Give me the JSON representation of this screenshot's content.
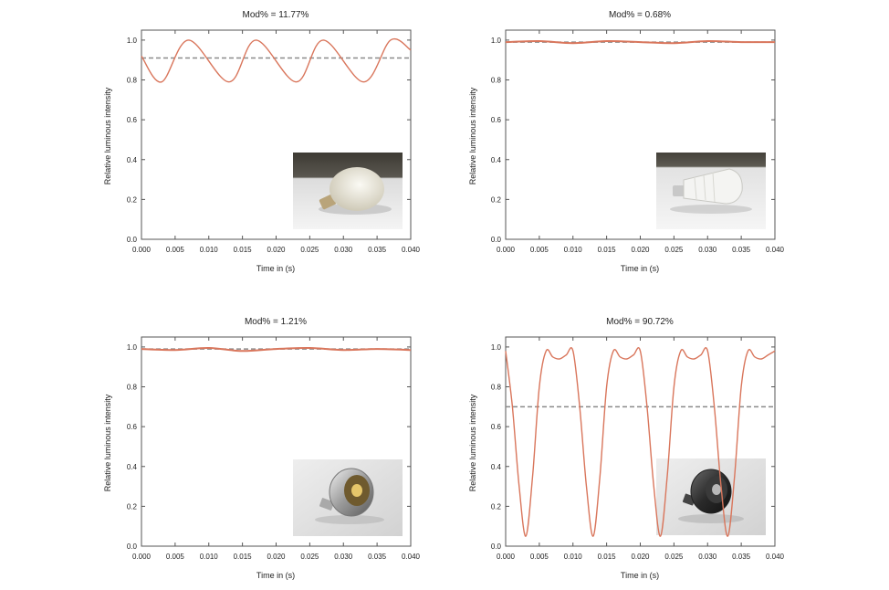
{
  "colors": {
    "curve": "#d9765c",
    "mean_line": "#8a8a8a",
    "axis": "#555555",
    "text": "#222222"
  },
  "chart_data": [
    {
      "type": "line",
      "title": "Mod% = 11.77%",
      "xlabel": "Time in (s)",
      "ylabel": "Relative luminous intensity",
      "xlim": [
        0,
        0.04
      ],
      "ylim": [
        0,
        1.05
      ],
      "x_ticks": [
        "0.000",
        "0.005",
        "0.010",
        "0.015",
        "0.020",
        "0.025",
        "0.030",
        "0.035",
        "0.040"
      ],
      "y_ticks": [
        "0.0",
        "0.2",
        "0.4",
        "0.6",
        "0.8",
        "1.0"
      ],
      "mean_level": 0.91,
      "series": [
        {
          "name": "luminous intensity",
          "x": [
            0.0,
            0.003,
            0.007,
            0.013,
            0.017,
            0.023,
            0.027,
            0.033,
            0.037,
            0.04
          ],
          "values": [
            0.92,
            0.79,
            1.0,
            0.79,
            1.0,
            0.79,
            1.0,
            0.79,
            1.0,
            0.95
          ]
        }
      ],
      "inset_image": "frosted LED bulb photo"
    },
    {
      "type": "line",
      "title": "Mod% = 0.68%",
      "xlabel": "Time in (s)",
      "ylabel": "Relative luminous intensity",
      "xlim": [
        0,
        0.04
      ],
      "ylim": [
        0,
        1.05
      ],
      "x_ticks": [
        "0.000",
        "0.005",
        "0.010",
        "0.015",
        "0.020",
        "0.025",
        "0.030",
        "0.035",
        "0.040"
      ],
      "y_ticks": [
        "0.0",
        "0.2",
        "0.4",
        "0.6",
        "0.8",
        "1.0"
      ],
      "mean_level": 0.99,
      "series": [
        {
          "name": "luminous intensity",
          "x": [
            0.0,
            0.005,
            0.01,
            0.015,
            0.02,
            0.025,
            0.03,
            0.035,
            0.04
          ],
          "values": [
            0.99,
            0.995,
            0.985,
            0.995,
            0.99,
            0.985,
            0.995,
            0.99,
            0.99
          ]
        }
      ],
      "inset_image": "white finned LED bulb photo"
    },
    {
      "type": "line",
      "title": "Mod% = 1.21%",
      "xlabel": "Time in (s)",
      "ylabel": "Relative luminous intensity",
      "xlim": [
        0,
        0.04
      ],
      "ylim": [
        0,
        1.05
      ],
      "x_ticks": [
        "0.000",
        "0.005",
        "0.010",
        "0.015",
        "0.020",
        "0.025",
        "0.030",
        "0.035",
        "0.040"
      ],
      "y_ticks": [
        "0.0",
        "0.2",
        "0.4",
        "0.6",
        "0.8",
        "1.0"
      ],
      "mean_level": 0.99,
      "series": [
        {
          "name": "luminous intensity",
          "x": [
            0.0,
            0.005,
            0.01,
            0.015,
            0.02,
            0.025,
            0.03,
            0.035,
            0.04
          ],
          "values": [
            0.99,
            0.985,
            0.995,
            0.98,
            0.99,
            0.995,
            0.985,
            0.99,
            0.985
          ]
        }
      ],
      "inset_image": "silver MR16 LED spot lamp photo"
    },
    {
      "type": "line",
      "title": "Mod% = 90.72%",
      "xlabel": "Time in (s)",
      "ylabel": "Relative luminous intensity",
      "xlim": [
        0,
        0.04
      ],
      "ylim": [
        0,
        1.05
      ],
      "x_ticks": [
        "0.000",
        "0.005",
        "0.010",
        "0.015",
        "0.020",
        "0.025",
        "0.030",
        "0.035",
        "0.040"
      ],
      "y_ticks": [
        "0.0",
        "0.2",
        "0.4",
        "0.6",
        "0.8",
        "1.0"
      ],
      "mean_level": 0.7,
      "series": [
        {
          "name": "luminous intensity",
          "x": [
            0.0,
            0.001,
            0.002,
            0.003,
            0.004,
            0.005,
            0.006,
            0.007,
            0.008,
            0.009,
            0.01,
            0.011,
            0.012,
            0.013,
            0.014,
            0.015,
            0.016,
            0.017,
            0.018,
            0.019,
            0.02,
            0.021,
            0.022,
            0.023,
            0.024,
            0.025,
            0.026,
            0.027,
            0.028,
            0.029,
            0.03,
            0.031,
            0.032,
            0.033,
            0.034,
            0.035,
            0.036,
            0.037,
            0.038,
            0.039,
            0.04
          ],
          "values": [
            0.98,
            0.7,
            0.3,
            0.05,
            0.35,
            0.8,
            0.98,
            0.95,
            0.94,
            0.96,
            0.98,
            0.7,
            0.3,
            0.05,
            0.35,
            0.8,
            0.98,
            0.95,
            0.94,
            0.96,
            0.98,
            0.7,
            0.3,
            0.05,
            0.35,
            0.8,
            0.98,
            0.95,
            0.94,
            0.96,
            0.98,
            0.7,
            0.3,
            0.05,
            0.35,
            0.8,
            0.98,
            0.95,
            0.94,
            0.96,
            0.98
          ]
        }
      ],
      "inset_image": "dark MR16 LED spot lamp photo"
    }
  ]
}
